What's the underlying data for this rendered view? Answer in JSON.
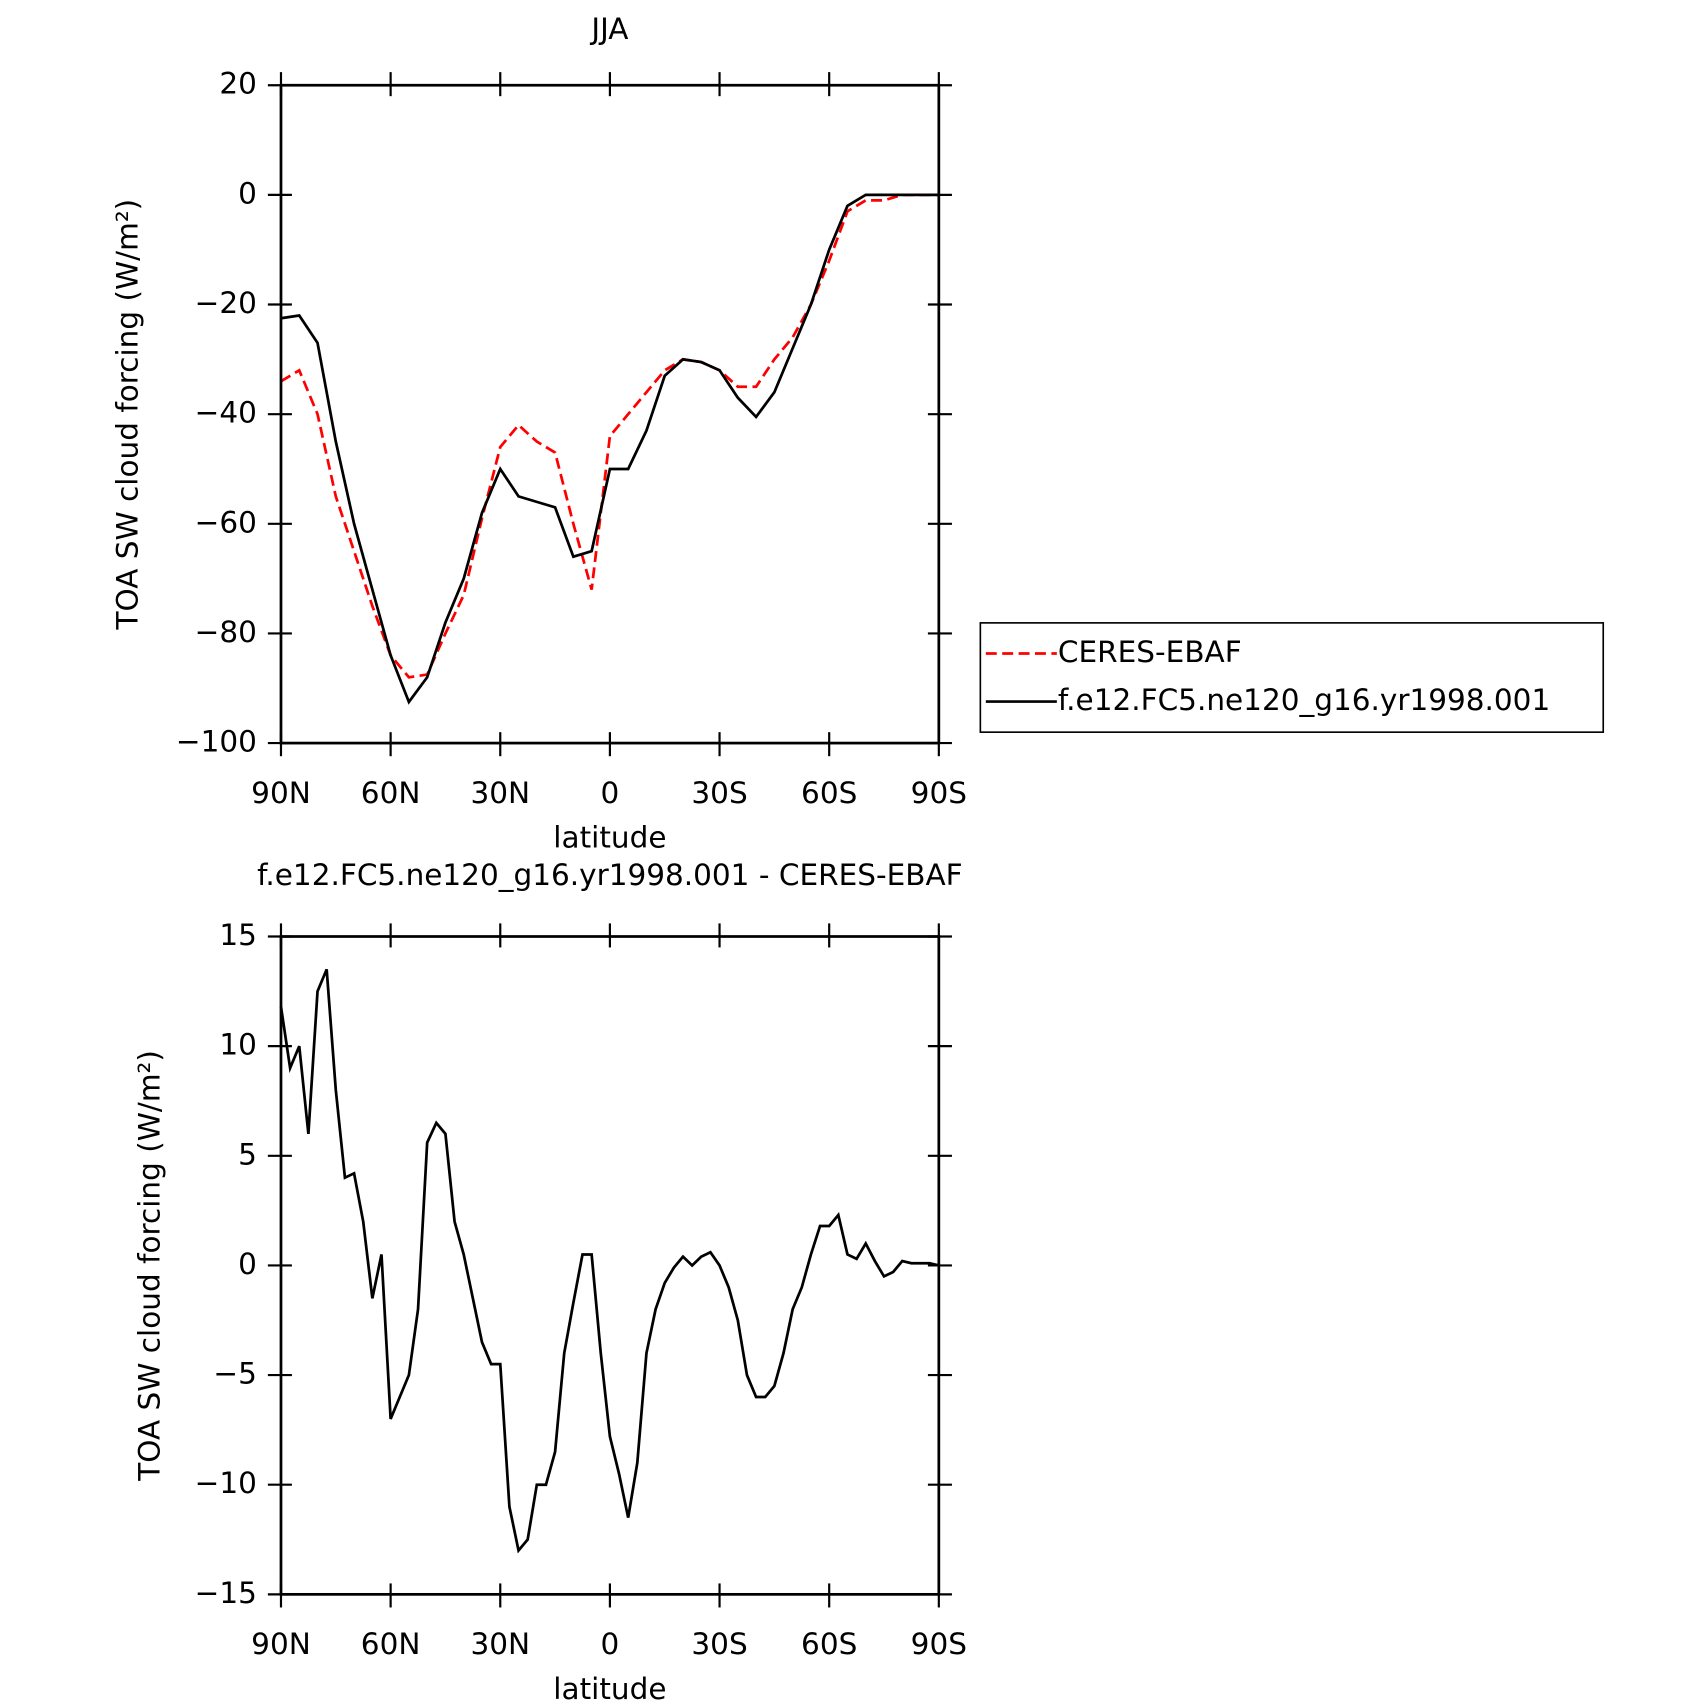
{
  "chart_data": [
    {
      "type": "line",
      "title": "JJA",
      "xlabel": "latitude",
      "ylabel": "TOA SW cloud forcing (W/m²)",
      "x": [
        90,
        85,
        80,
        75,
        70,
        65,
        60,
        55,
        50,
        45,
        40,
        35,
        30,
        25,
        20,
        15,
        10,
        5,
        0,
        -5,
        -10,
        -15,
        -20,
        -25,
        -30,
        -35,
        -40,
        -45,
        -50,
        -55,
        -60,
        -65,
        -70,
        -75,
        -80,
        -85,
        -90
      ],
      "series": [
        {
          "name": "CERES-EBAF",
          "color": "#ff0000",
          "style": "dashed",
          "values": [
            -34,
            -32,
            -40,
            -55,
            -65,
            -75,
            -84,
            -88,
            -87.5,
            -80,
            -73,
            -59,
            -46,
            -42,
            -45,
            -47,
            -60,
            -72,
            -44,
            -40,
            -36,
            -32,
            -30,
            -30.5,
            -32,
            -35,
            -35,
            -30,
            -26,
            -20,
            -12,
            -3,
            -1,
            -1,
            0,
            0,
            0
          ]
        },
        {
          "name": "f.e12.FC5.ne120_g16.yr1998.001",
          "color": "#000000",
          "style": "solid",
          "values": [
            -22.5,
            -22,
            -27,
            -45,
            -60,
            -72,
            -84,
            -92.5,
            -88,
            -78,
            -70,
            -58,
            -50,
            -55,
            -56,
            -57,
            -66,
            -65,
            -50,
            -50,
            -43,
            -33,
            -30,
            -30.5,
            -32,
            -37,
            -40.5,
            -36,
            -28,
            -20,
            -10,
            -2,
            0,
            0,
            0,
            0,
            0
          ]
        }
      ],
      "xlim": [
        90,
        -90
      ],
      "xticks": [
        {
          "value": 90,
          "label": "90N"
        },
        {
          "value": 60,
          "label": "60N"
        },
        {
          "value": 30,
          "label": "30N"
        },
        0,
        {
          "value": -30,
          "label": "30S"
        },
        {
          "value": -60,
          "label": "60S"
        },
        {
          "value": -90,
          "label": "90S"
        }
      ],
      "ylim": [
        -100,
        20
      ],
      "yticks": [
        20,
        0,
        {
          "value": -20,
          "label": "−20"
        },
        {
          "value": -40,
          "label": "−40"
        },
        {
          "value": -60,
          "label": "−60"
        },
        {
          "value": -80,
          "label": "−80"
        },
        {
          "value": -100,
          "label": "−100"
        }
      ],
      "legend": "right"
    },
    {
      "type": "line",
      "title": "f.e12.FC5.ne120_g16.yr1998.001 - CERES-EBAF",
      "xlabel": "latitude",
      "ylabel": "TOA SW cloud forcing (W/m²)",
      "x": [
        90,
        87.5,
        85,
        82.5,
        80,
        77.5,
        75,
        72.5,
        70,
        67.5,
        65,
        62.5,
        60,
        57.5,
        55,
        52.5,
        50,
        47.5,
        45,
        42.5,
        40,
        37.5,
        35,
        32.5,
        30,
        27.5,
        25,
        22.5,
        20,
        17.5,
        15,
        12.5,
        10,
        7.5,
        5,
        2.5,
        0,
        -2.5,
        -5,
        -7.5,
        -10,
        -12.5,
        -15,
        -17.5,
        -20,
        -22.5,
        -25,
        -27.5,
        -30,
        -32.5,
        -35,
        -37.5,
        -40,
        -42.5,
        -45,
        -47.5,
        -50,
        -52.5,
        -55,
        -57.5,
        -60,
        -62.5,
        -65,
        -67.5,
        -70,
        -72.5,
        -75,
        -77.5,
        -80,
        -82.5,
        -85,
        -87.5,
        -90
      ],
      "series": [
        {
          "color": "#000000",
          "style": "solid",
          "values": [
            11.8,
            9,
            10,
            6,
            12.5,
            13.5,
            8,
            4,
            4.2,
            2,
            -1.5,
            0.5,
            -7,
            -6,
            -5,
            -2,
            5.6,
            6.5,
            6,
            2,
            0.5,
            -1.5,
            -3.5,
            -4.5,
            -4.5,
            -11,
            -13,
            -12.5,
            -10,
            -10,
            -8.5,
            -4,
            -1.7,
            0.5,
            0.5,
            -4,
            -7.8,
            -9.5,
            -11.5,
            -9,
            -4,
            -2,
            -0.8,
            -0.1,
            0.4,
            0,
            0.4,
            0.6,
            0,
            -1,
            -2.5,
            -5,
            -6,
            -6,
            -5.5,
            -4,
            -2,
            -1,
            0.5,
            1.8,
            1.8,
            2.3,
            0.5,
            0.3,
            1,
            0.2,
            -0.5,
            -0.3,
            0.2,
            0.1,
            0.1,
            0.1,
            0
          ]
        }
      ],
      "xlim": [
        90,
        -90
      ],
      "xticks": [
        {
          "value": 90,
          "label": "90N"
        },
        {
          "value": 60,
          "label": "60N"
        },
        {
          "value": 30,
          "label": "30N"
        },
        0,
        {
          "value": -30,
          "label": "30S"
        },
        {
          "value": -60,
          "label": "60S"
        },
        {
          "value": -90,
          "label": "90S"
        }
      ],
      "ylim": [
        -15,
        15
      ],
      "yticks": [
        15,
        10,
        5,
        0,
        {
          "value": -5,
          "label": "−5"
        },
        {
          "value": -10,
          "label": "−10"
        },
        {
          "value": -15,
          "label": "−15"
        }
      ]
    }
  ]
}
